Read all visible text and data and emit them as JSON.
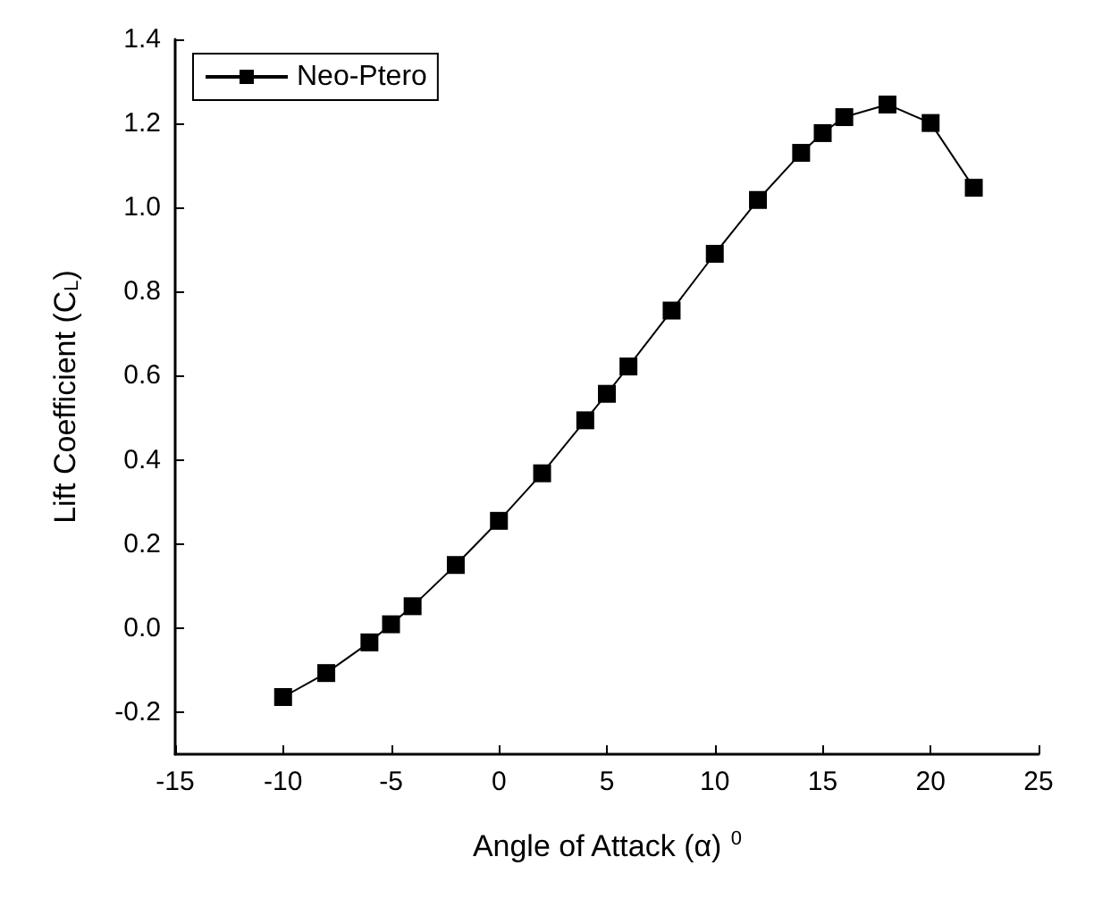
{
  "chart_data": {
    "type": "line",
    "xlabel": "Angle of Attack (α) $^{0}$",
    "ylabel": "Lift Coefficient (C$_{L}$)",
    "x": [
      -10,
      -8,
      -6,
      -5,
      -4,
      -2,
      0,
      2,
      4,
      5,
      6,
      8,
      10,
      12,
      14,
      15,
      16,
      18,
      20,
      22
    ],
    "series": [
      {
        "name": "Neo-Ptero",
        "color": "#000000",
        "values": [
          -0.164,
          -0.107,
          -0.034,
          0.009,
          0.052,
          0.15,
          0.255,
          0.368,
          0.494,
          0.557,
          0.622,
          0.755,
          0.89,
          1.018,
          1.13,
          1.177,
          1.215,
          1.245,
          1.201,
          1.047
        ]
      }
    ],
    "xlim": [
      -15,
      25
    ],
    "xticks": [
      -15,
      -10,
      -5,
      0,
      5,
      10,
      15,
      20,
      25
    ],
    "ylim": [
      -0.3,
      1.4
    ],
    "yticks": [
      -0.2,
      {
        "value": 0,
        "label": "0.0"
      },
      0.2,
      0.4,
      0.6,
      0.8,
      {
        "value": 1,
        "label": "1.0"
      },
      1.2,
      1.4
    ],
    "legend": "top left",
    "marker": "square",
    "line_style": "solid"
  }
}
